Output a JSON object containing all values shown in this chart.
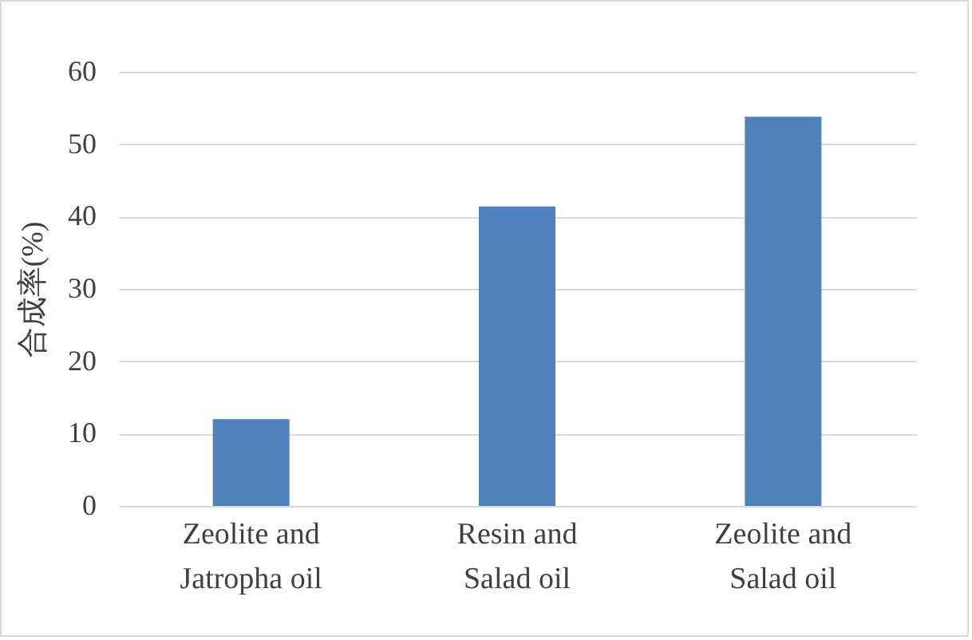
{
  "chart_data": {
    "type": "bar",
    "ylabel": "合成率(%)",
    "categories": [
      "Zeolite and Jatropha oil",
      "Resin and Salad oil",
      "Zeolite and Salad oil"
    ],
    "values": [
      12,
      41.4,
      53.8
    ],
    "color": "#4f81bd",
    "ylim": [
      0,
      60
    ],
    "yticks": [
      0,
      10,
      20,
      30,
      40,
      50,
      60
    ],
    "grid": "y"
  }
}
